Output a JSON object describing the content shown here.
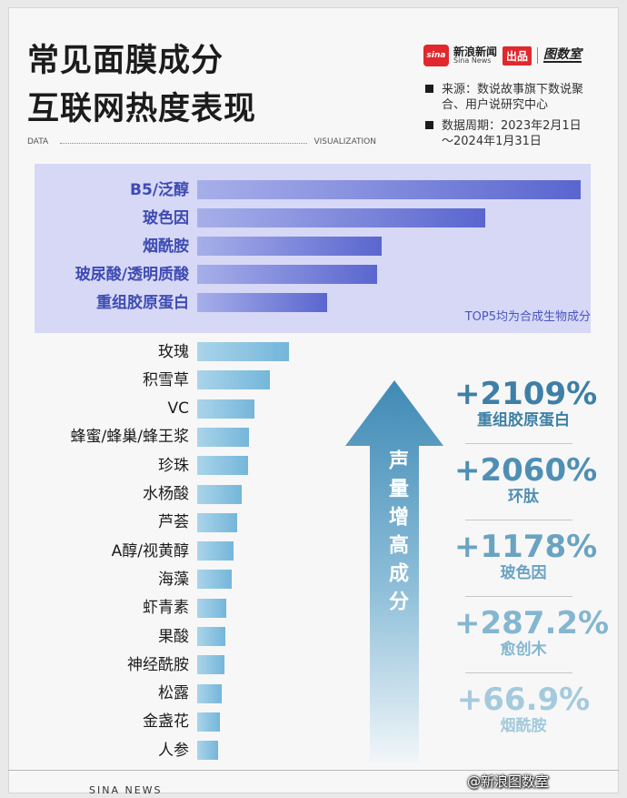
{
  "header": {
    "title_line1": "常见面膜成分",
    "title_line2": "互联网热度表现",
    "brand": {
      "logo_text": "sina",
      "name": "新浪新闻",
      "name_en": "Sina News",
      "produced": "出品",
      "partner": "图数室"
    },
    "source_line1": "来源：数说故事旗下数说聚",
    "source_line2": "合、用户说研究中心",
    "period_line1": "数据周期：2023年2月1日",
    "period_line2": "～2024年1月31日",
    "data_label": "DATA",
    "viz_label": "VISUALIZATION"
  },
  "chart_data": [
    {
      "type": "bar",
      "orientation": "horizontal",
      "title": "",
      "xlabel": "",
      "ylabel": "",
      "value_unit": "relative",
      "xlim": [
        0,
        100
      ],
      "top_group_size": 5,
      "top_group_note": "TOP5均为合成生物成分",
      "categories": [
        "B5/泛醇",
        "玻色因",
        "烟酰胺",
        "玻尿酸/透明质酸",
        "重组胶原蛋白",
        "玫瑰",
        "积雪草",
        "VC",
        "蜂蜜/蜂巢/蜂王浆",
        "珍珠",
        "水杨酸",
        "芦荟",
        "A醇/视黄醇",
        "海藻",
        "虾青素",
        "果酸",
        "神经酰胺",
        "松露",
        "金盏花",
        "人参"
      ],
      "values": [
        100,
        75,
        48,
        47,
        34,
        24,
        19,
        15,
        13.5,
        13.3,
        11.5,
        10.5,
        9.5,
        9,
        7.5,
        7.3,
        7,
        6.5,
        6,
        5.4
      ],
      "colors": {
        "top": "#5a66cf",
        "rest": "#74b6da",
        "panel": "#d6d8f6"
      }
    },
    {
      "type": "table",
      "title": "声量增高成分",
      "columns": [
        "growth",
        "ingredient"
      ],
      "rows": [
        {
          "growth": "+2109%",
          "name": "重组胶原蛋白",
          "color": "#3d7fa6"
        },
        {
          "growth": "+2060%",
          "name": "环肽",
          "color": "#4f8fb4"
        },
        {
          "growth": "+1178%",
          "name": "玻色因",
          "color": "#6aa3c2"
        },
        {
          "growth": "+287.2%",
          "name": "愈创木",
          "color": "#84b6d0"
        },
        {
          "growth": "+66.9%",
          "name": "烟酰胺",
          "color": "#a5cadd"
        }
      ],
      "arrow_colors": {
        "top": "#3f8ab5",
        "bottom": "#f1f6f9"
      }
    }
  ],
  "footer": {
    "left": "SINA NEWS",
    "right": "@新浪图数室"
  }
}
